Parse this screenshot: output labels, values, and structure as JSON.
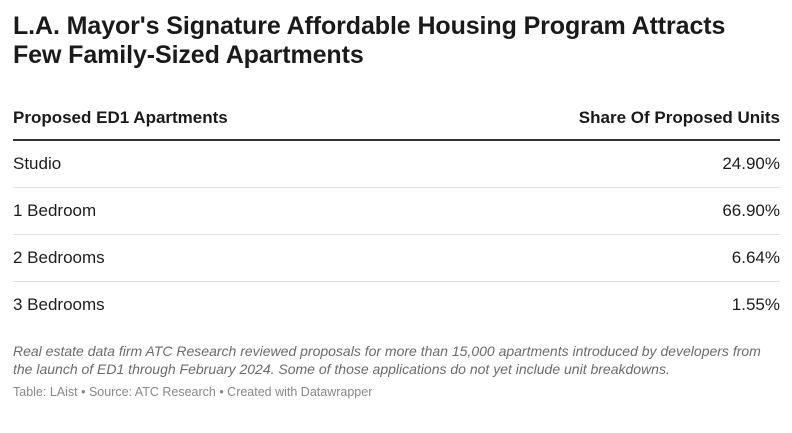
{
  "title": "L.A. Mayor's Signature Affordable Housing Program Attracts Few Family-Sized Apartments",
  "chart_data": {
    "type": "table",
    "columns": [
      "Proposed ED1 Apartments",
      "Share Of Proposed Units"
    ],
    "rows": [
      {
        "label": "Studio",
        "value": "24.90%"
      },
      {
        "label": "1 Bedroom",
        "value": "66.90%"
      },
      {
        "label": "2 Bedrooms",
        "value": "6.64%"
      },
      {
        "label": "3 Bedrooms",
        "value": "1.55%"
      }
    ]
  },
  "notes": "Real estate data firm ATC Research reviewed proposals for more than 15,000 apartments introduced by developers from the launch of ED1 through February 2024. Some of those applications do not yet include unit breakdowns.",
  "footer": "Table: LAist • Source: ATC Research • Created with Datawrapper",
  "colors": {
    "text": "#1d1d1d",
    "header_rule": "#333333",
    "row_rule": "#e2e2e2",
    "notes": "#6b6b6b",
    "footer": "#888888"
  }
}
